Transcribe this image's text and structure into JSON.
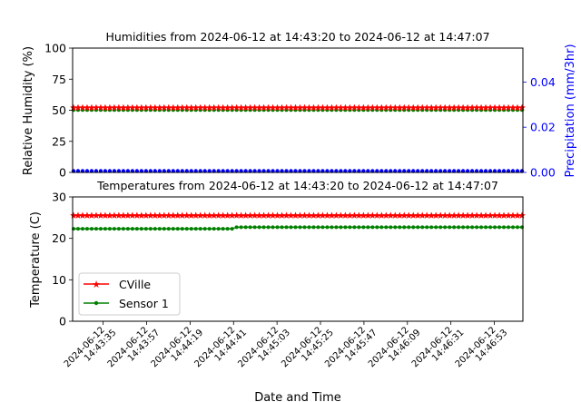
{
  "chart_data": [
    {
      "type": "scatter",
      "title": "Humidities from 2024-06-12 at 14:43:20 to 2024-06-12 at 14:47:07",
      "ylabel": "Relative Humidity (%)",
      "ylim": [
        0,
        100
      ],
      "yticks": [
        "0",
        "25",
        "50",
        "75",
        "100"
      ],
      "secondary_axis": {
        "ylabel": "Precipitation (mm/3hr)",
        "ylim": [
          0,
          0.055
        ],
        "yticks": [
          "0.00",
          "0.02",
          "0.04"
        ],
        "color": "#0000ff"
      },
      "x_range": [
        "2024-06-12 14:43:20",
        "2024-06-12 14:47:07"
      ],
      "series": [
        {
          "name": "CVille",
          "color": "#ff0000",
          "marker": "star",
          "axis": "left",
          "value": 52
        },
        {
          "name": "Sensor 1",
          "color": "#008000",
          "marker": "dot",
          "axis": "left",
          "value": 50.3
        },
        {
          "color": "#0000ff",
          "marker": "dot",
          "axis": "right",
          "value": 0.0
        }
      ],
      "grid": false
    },
    {
      "type": "line",
      "title": "Temperatures from 2024-06-12 at 14:43:20 to 2024-06-12 at 14:47:07",
      "xlabel": "Date and Time",
      "ylabel": "Temperature (C)",
      "ylim": [
        0,
        30
      ],
      "yticks": [
        "0",
        "10",
        "20",
        "30"
      ],
      "xticks": [
        [
          "2024-06-12",
          "14:43:35"
        ],
        [
          "2024-06-12",
          "14:43:57"
        ],
        [
          "2024-06-12",
          "14:44:19"
        ],
        [
          "2024-06-12",
          "14:44:41"
        ],
        [
          "2024-06-12",
          "14:45:03"
        ],
        [
          "2024-06-12",
          "14:45:25"
        ],
        [
          "2024-06-12",
          "14:45:47"
        ],
        [
          "2024-06-12",
          "14:46:09"
        ],
        [
          "2024-06-12",
          "14:46:31"
        ],
        [
          "2024-06-12",
          "14:46:53"
        ]
      ],
      "legend": {
        "position": "lower-left"
      },
      "series": [
        {
          "name": "CVille",
          "color": "#ff0000",
          "marker": "star",
          "value": 25.5
        },
        {
          "name": "Sensor 1",
          "color": "#008000",
          "marker": "dot",
          "value_before": 22.3,
          "value_after": 22.7,
          "step_time": "2024-06-12 14:44:41"
        }
      ],
      "grid": false
    }
  ]
}
